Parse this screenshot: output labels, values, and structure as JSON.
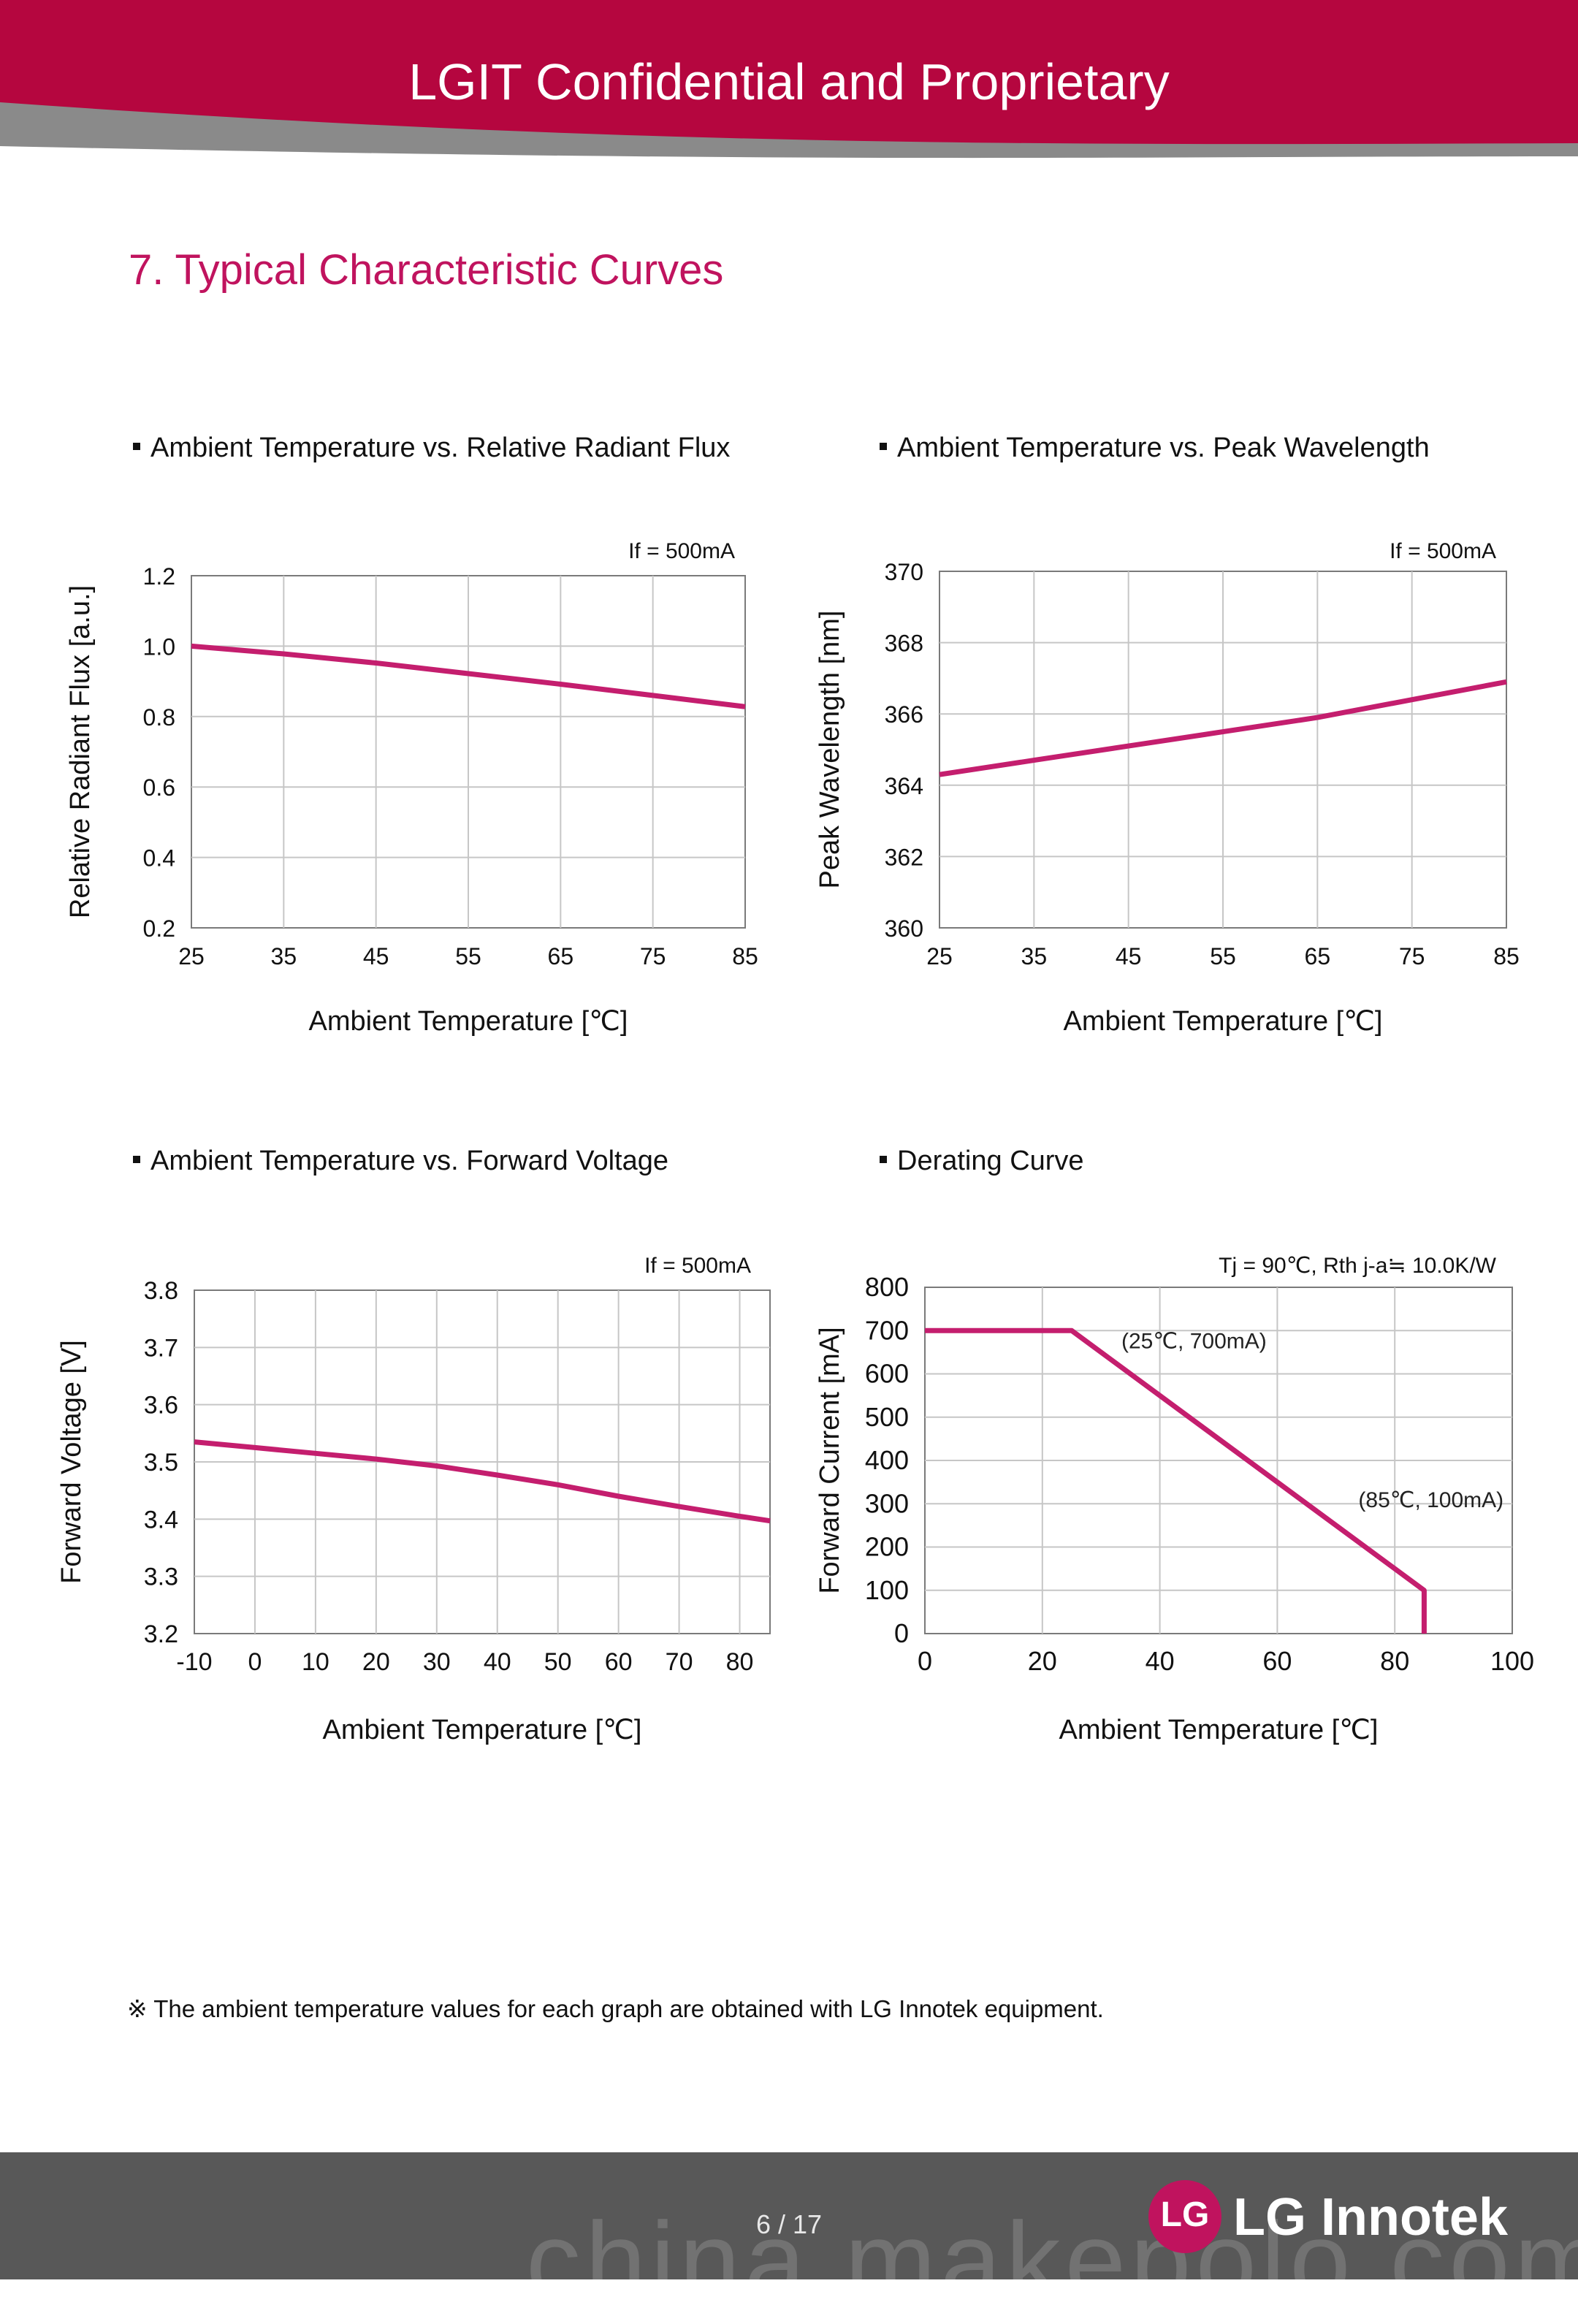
{
  "header": {
    "title": "LGIT Confidential and Proprietary",
    "band_color": "#b5063f"
  },
  "section": {
    "title": "7. Typical Characteristic Curves"
  },
  "line_color": "#c41e6e",
  "chart_data": [
    {
      "type": "line",
      "heading": "Ambient Temperature vs. Relative Radiant Flux",
      "condition": "If = 500mA",
      "xlabel": "Ambient Temperature [℃]",
      "ylabel": "Relative Radiant Flux [a.u.]",
      "xlim": [
        25,
        85
      ],
      "ylim": [
        0.2,
        1.2
      ],
      "x_ticks": [
        25,
        35,
        45,
        55,
        65,
        75,
        85
      ],
      "y_ticks": [
        "0.2",
        "0.4",
        "0.6",
        "0.8",
        "1.0",
        "1.2"
      ],
      "grid": true,
      "x": [
        25,
        35,
        45,
        55,
        65,
        75,
        85
      ],
      "y": [
        1.0,
        0.978,
        0.952,
        0.922,
        0.892,
        0.86,
        0.828
      ],
      "annotations": []
    },
    {
      "type": "line",
      "heading": "Ambient Temperature vs. Peak Wavelength",
      "condition": "If = 500mA",
      "xlabel": "Ambient Temperature [℃]",
      "ylabel": "Peak Wavelength [nm]",
      "xlim": [
        25,
        85
      ],
      "ylim": [
        360,
        370
      ],
      "x_ticks": [
        25,
        35,
        45,
        55,
        65,
        75,
        85
      ],
      "y_ticks": [
        "360",
        "362",
        "364",
        "366",
        "368",
        "370"
      ],
      "grid": true,
      "x": [
        25,
        35,
        45,
        55,
        65,
        75,
        85
      ],
      "y": [
        364.3,
        364.7,
        365.1,
        365.5,
        365.9,
        366.4,
        366.9
      ],
      "annotations": []
    },
    {
      "type": "line",
      "heading": "Ambient Temperature vs. Forward Voltage",
      "condition": "If = 500mA",
      "xlabel": "Ambient Temperature [℃]",
      "ylabel": "Forward Voltage [V]",
      "xlim": [
        -10,
        85
      ],
      "ylim": [
        3.2,
        3.8
      ],
      "x_ticks": [
        -10,
        0,
        10,
        20,
        30,
        40,
        50,
        60,
        70,
        80
      ],
      "y_ticks": [
        "3.2",
        "3.3",
        "3.4",
        "3.5",
        "3.6",
        "3.7",
        "3.8"
      ],
      "grid": true,
      "x": [
        -10,
        0,
        10,
        20,
        30,
        40,
        50,
        60,
        70,
        80,
        85
      ],
      "y": [
        3.535,
        3.525,
        3.515,
        3.505,
        3.493,
        3.477,
        3.46,
        3.44,
        3.422,
        3.405,
        3.397
      ],
      "annotations": []
    },
    {
      "type": "line",
      "heading": "Derating Curve",
      "condition": "Tj = 90℃, Rth j-a≒ 10.0K/W",
      "xlabel": "Ambient Temperature [℃]",
      "ylabel": "Forward Current [mA]",
      "xlim": [
        0,
        100
      ],
      "ylim": [
        0,
        800
      ],
      "x_ticks": [
        0,
        20,
        40,
        60,
        80,
        100
      ],
      "y_ticks": [
        "0",
        "100",
        "200",
        "300",
        "400",
        "500",
        "600",
        "700",
        "800"
      ],
      "grid": true,
      "x": [
        0,
        25,
        85,
        85
      ],
      "y": [
        700,
        700,
        100,
        0
      ],
      "annotations": [
        {
          "text": "(25℃, 700mA)",
          "x": 25,
          "y": 700
        },
        {
          "text": "(85℃, 100mA)",
          "x": 85,
          "y": 100
        }
      ]
    }
  ],
  "footnote": "※ The ambient temperature values for each graph are obtained with LG Innotek equipment.",
  "footer": {
    "page_number": "6 / 17",
    "watermark": "china.makepolo.com",
    "logo_text": "LG Innotek"
  }
}
